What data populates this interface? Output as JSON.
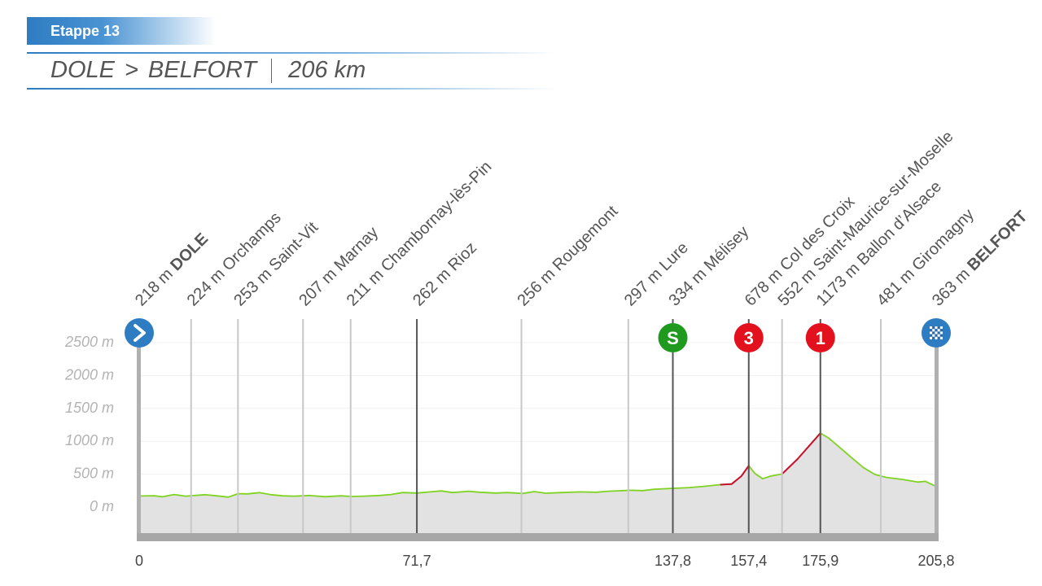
{
  "header": {
    "stage_label": "Etappe 13",
    "start": "DOLE",
    "arrow": ">",
    "finish": "BELFORT",
    "distance": "206 km"
  },
  "colors": {
    "brand_blue": "#2e7cc2",
    "profile_line": "#7ed321",
    "climb_line": "#c8102e",
    "terrain_fill": "#e2e2e2",
    "sprint_green": "#1f9a1f",
    "climb_red": "#e3101e",
    "axis_grey": "#b0b0b0"
  },
  "chart_data": {
    "type": "area",
    "title": "DOLE > BELFORT | 206 km",
    "xlabel": "",
    "ylabel": "",
    "xlim": [
      0,
      205.8
    ],
    "ylim": [
      0,
      2500
    ],
    "grid": true,
    "y_ticks": [
      "2500 m",
      "2000 m",
      "1500 m",
      "1000 m",
      "500 m",
      "0 m"
    ],
    "y_tick_values": [
      2500,
      2000,
      1500,
      1000,
      500,
      0
    ],
    "x_ticks": [
      "0",
      "71,7",
      "137,8",
      "157,4",
      "175,9",
      "205,8"
    ],
    "x_tick_values": [
      0,
      71.7,
      137.8,
      157.4,
      175.9,
      205.8
    ],
    "profile": [
      [
        0,
        218
      ],
      [
        4,
        222
      ],
      [
        6,
        205
      ],
      [
        9,
        240
      ],
      [
        12,
        215
      ],
      [
        14,
        224
      ],
      [
        17,
        238
      ],
      [
        20,
        220
      ],
      [
        23,
        200
      ],
      [
        25.5,
        253
      ],
      [
        28,
        250
      ],
      [
        31,
        268
      ],
      [
        34,
        238
      ],
      [
        37,
        220
      ],
      [
        40,
        215
      ],
      [
        44,
        225
      ],
      [
        48,
        207
      ],
      [
        52,
        220
      ],
      [
        55,
        211
      ],
      [
        58,
        215
      ],
      [
        62,
        225
      ],
      [
        65,
        240
      ],
      [
        68,
        270
      ],
      [
        71.7,
        262
      ],
      [
        75,
        280
      ],
      [
        78,
        295
      ],
      [
        81,
        270
      ],
      [
        85,
        290
      ],
      [
        88,
        275
      ],
      [
        92,
        262
      ],
      [
        95,
        270
      ],
      [
        99,
        256
      ],
      [
        102,
        285
      ],
      [
        105,
        260
      ],
      [
        109,
        270
      ],
      [
        114,
        280
      ],
      [
        118,
        275
      ],
      [
        121,
        290
      ],
      [
        124,
        297
      ],
      [
        127,
        305
      ],
      [
        130,
        300
      ],
      [
        133,
        320
      ],
      [
        137.8,
        334
      ],
      [
        142,
        345
      ],
      [
        146,
        365
      ],
      [
        150,
        390
      ],
      [
        153,
        400
      ],
      [
        155.5,
        520
      ],
      [
        157.4,
        678
      ],
      [
        159,
        560
      ],
      [
        161,
        480
      ],
      [
        163,
        520
      ],
      [
        166,
        552
      ],
      [
        170,
        780
      ],
      [
        173,
        980
      ],
      [
        175.9,
        1173
      ],
      [
        178,
        1100
      ],
      [
        181,
        950
      ],
      [
        184,
        800
      ],
      [
        187,
        650
      ],
      [
        190,
        545
      ],
      [
        193,
        500
      ],
      [
        197,
        470
      ],
      [
        201,
        430
      ],
      [
        203,
        440
      ],
      [
        205.8,
        363
      ]
    ],
    "climb_segments": [
      [
        150,
        157.4
      ],
      [
        166,
        175.9
      ]
    ],
    "locations": [
      {
        "km": 0,
        "label": "218 m",
        "name": "DOLE",
        "bold": true,
        "marker": "start"
      },
      {
        "km": 13.4,
        "label": "224 m",
        "name": "Orchamps",
        "bold": false
      },
      {
        "km": 25.5,
        "label": "253 m",
        "name": "Saint-Vit",
        "bold": false
      },
      {
        "km": 42.3,
        "label": "207 m",
        "name": "Marnay",
        "bold": false
      },
      {
        "km": 54.6,
        "label": "211 m",
        "name": "Chambornay-lès-Pin",
        "bold": false
      },
      {
        "km": 71.7,
        "label": "262 m",
        "name": "Rioz",
        "bold": false,
        "dark": true
      },
      {
        "km": 98.7,
        "label": "256 m",
        "name": "Rougemont",
        "bold": false
      },
      {
        "km": 126.3,
        "label": "297 m",
        "name": "Lure",
        "bold": false
      },
      {
        "km": 137.8,
        "label": "334 m",
        "name": "Mélisey",
        "bold": false,
        "dark": true,
        "marker": "sprint",
        "badge": "S"
      },
      {
        "km": 157.4,
        "label": "678 m",
        "name": "Col des Croix",
        "bold": false,
        "dark": true,
        "marker": "climb",
        "badge": "3"
      },
      {
        "km": 166,
        "label": "552 m",
        "name": "Saint-Maurice-sur-Moselle",
        "bold": false
      },
      {
        "km": 175.9,
        "label": "1173 m",
        "name": "Ballon d’Alsace",
        "bold": false,
        "dark": true,
        "marker": "climb",
        "badge": "1"
      },
      {
        "km": 191.5,
        "label": "481 m",
        "name": "Giromagny",
        "bold": false
      },
      {
        "km": 205.8,
        "label": "363 m",
        "name": "BELFORT",
        "bold": true,
        "marker": "finish"
      }
    ]
  }
}
